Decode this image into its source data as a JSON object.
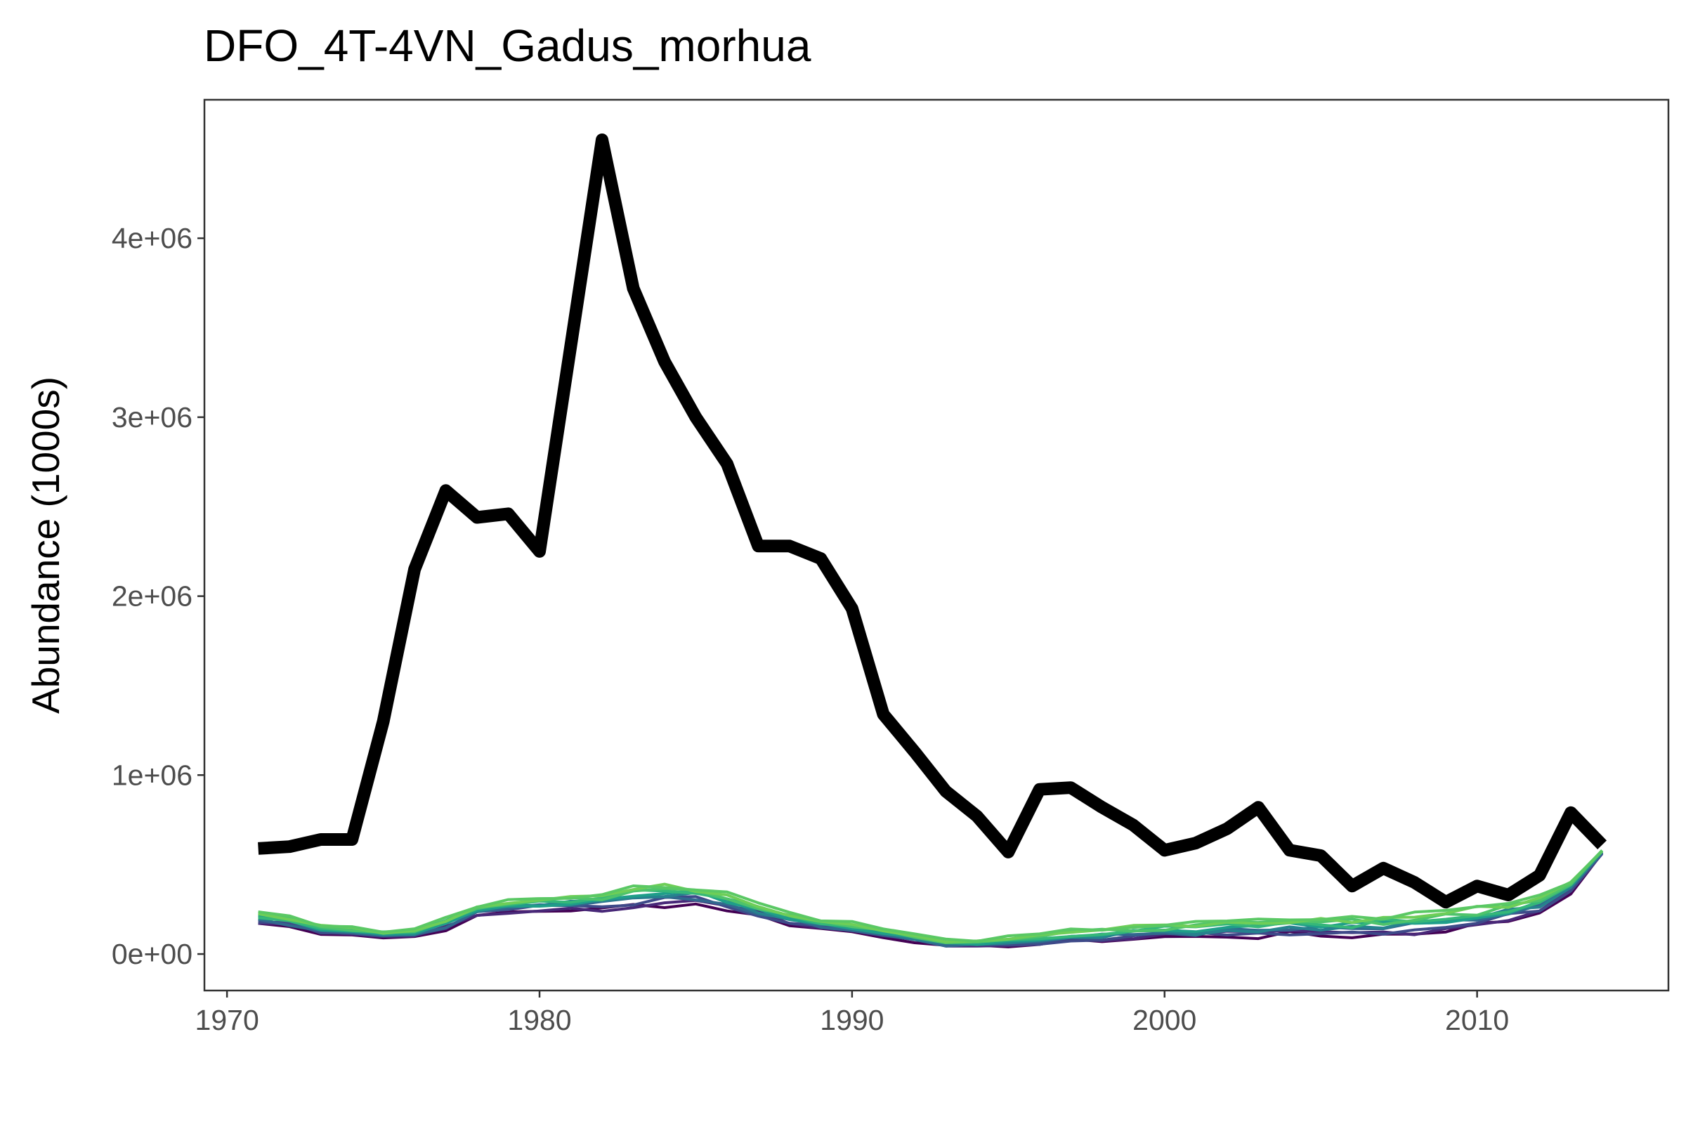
{
  "chart_data": {
    "type": "line",
    "title": "DFO_4T-4VN_Gadus_morhua",
    "xlabel": "",
    "ylabel": "Abundance (1000s)",
    "xlim": [
      1969.3,
      2016.1
    ],
    "ylim": [
      -200000,
      4770000
    ],
    "x_ticks": [
      1970,
      1980,
      1990,
      2000,
      2010
    ],
    "x_tick_labels": [
      "1970",
      "1980",
      "1990",
      "2000",
      "2010"
    ],
    "y_ticks": [
      0,
      1000000,
      2000000,
      3000000,
      4000000
    ],
    "y_tick_labels": [
      "0e+00",
      "1e+06",
      "2e+06",
      "3e+06",
      "4e+06"
    ],
    "grid": false,
    "legend": "none",
    "colors": {
      "observed": "#000000",
      "tick_text": "#4d4d4d",
      "panel_border": "#333333"
    },
    "x": [
      1971,
      1972,
      1973,
      1974,
      1975,
      1976,
      1977,
      1978,
      1979,
      1980,
      1981,
      1982,
      1983,
      1984,
      1985,
      1986,
      1987,
      1988,
      1989,
      1990,
      1991,
      1992,
      1993,
      1994,
      1995,
      1996,
      1997,
      1998,
      1999,
      2000,
      2001,
      2002,
      2003,
      2004,
      2005,
      2006,
      2007,
      2008,
      2009,
      2010,
      2011,
      2012,
      2013,
      2014
    ],
    "series": [
      {
        "role": "observed",
        "color": "#000000",
        "values": [
          590000,
          600000,
          640000,
          640000,
          1300000,
          2150000,
          2590000,
          2440000,
          2460000,
          2250000,
          3400000,
          4550000,
          3720000,
          3310000,
          3000000,
          2740000,
          2280000,
          2280000,
          2210000,
          1930000,
          1340000,
          1130000,
          910000,
          770000,
          570000,
          920000,
          930000,
          820000,
          720000,
          580000,
          620000,
          700000,
          820000,
          580000,
          550000,
          380000,
          480000,
          400000,
          290000,
          380000,
          330000,
          440000,
          790000,
          610000
        ]
      }
    ],
    "simulation_band": {
      "count": 10,
      "colormap": [
        "#440154",
        "#482878",
        "#3e4a89",
        "#31688e",
        "#26828e",
        "#1f9e89",
        "#35b779",
        "#4ec36b",
        "#6ece58",
        "#5ac864"
      ],
      "center": [
        200000,
        180000,
        140000,
        130000,
        110000,
        120000,
        170000,
        240000,
        270000,
        280000,
        290000,
        290000,
        320000,
        330000,
        330000,
        300000,
        250000,
        200000,
        170000,
        150000,
        120000,
        90000,
        60000,
        60000,
        70000,
        80000,
        100000,
        110000,
        120000,
        130000,
        130000,
        140000,
        140000,
        150000,
        150000,
        150000,
        160000,
        170000,
        190000,
        210000,
        240000,
        280000,
        380000,
        570000
      ],
      "spread": [
        45000,
        45000,
        35000,
        30000,
        30000,
        35000,
        45000,
        60000,
        60000,
        60000,
        65000,
        70000,
        80000,
        80000,
        80000,
        75000,
        60000,
        50000,
        45000,
        40000,
        35000,
        30000,
        30000,
        30000,
        35000,
        40000,
        45000,
        50000,
        55000,
        55000,
        60000,
        60000,
        65000,
        70000,
        75000,
        75000,
        80000,
        80000,
        80000,
        80000,
        80000,
        70000,
        50000,
        15000
      ]
    }
  }
}
